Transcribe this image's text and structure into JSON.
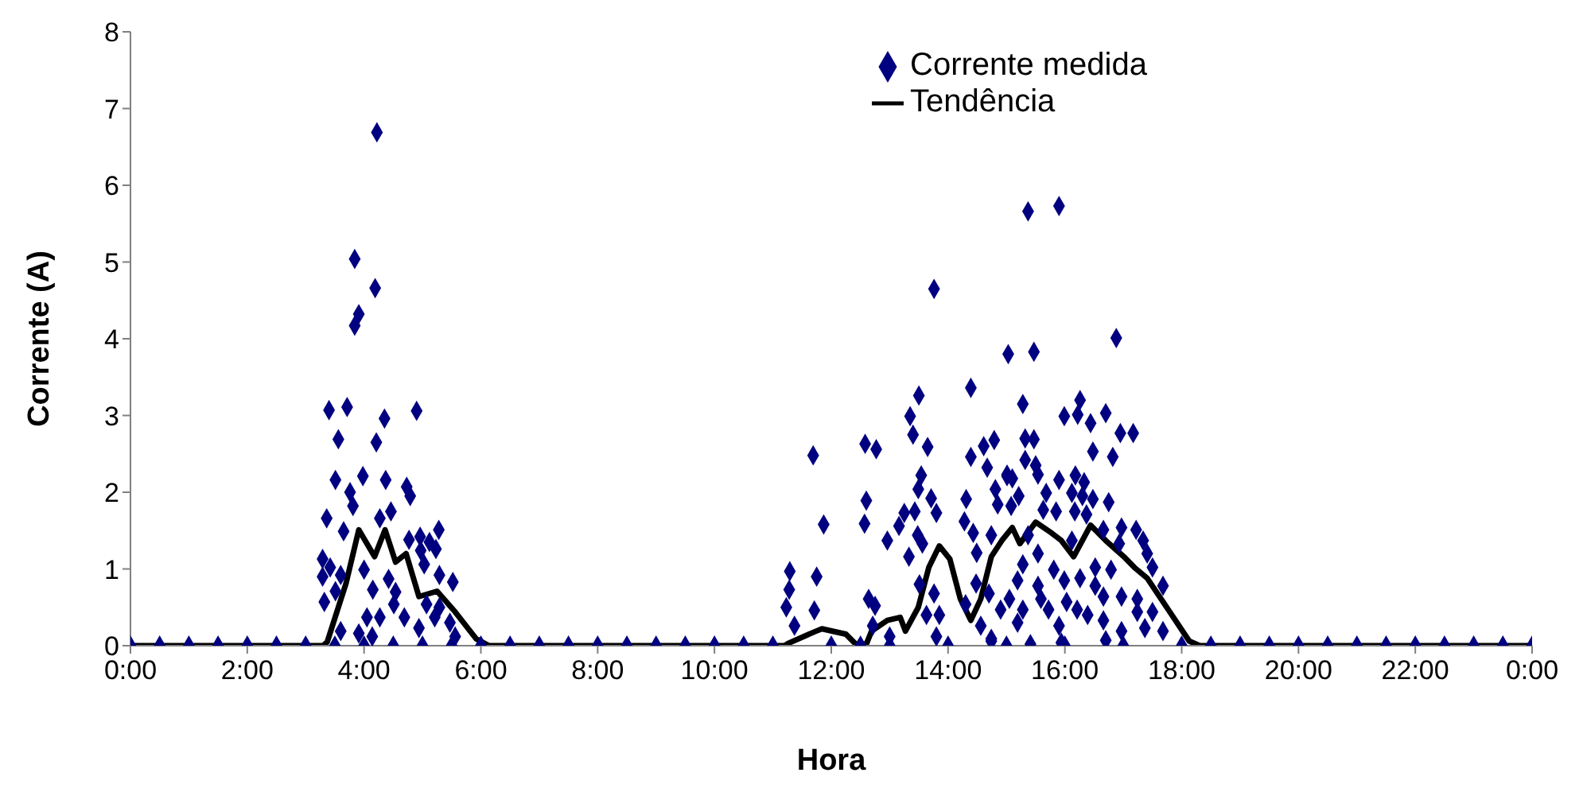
{
  "chart_data": {
    "type": "scatter",
    "xlabel": "Hora",
    "ylabel": "Corrente (A)",
    "xlim": [
      0,
      24
    ],
    "xticks": [
      {
        "value": 0,
        "label": "0:00"
      },
      {
        "value": 2,
        "label": "2:00"
      },
      {
        "value": 4,
        "label": "4:00"
      },
      {
        "value": 6,
        "label": "6:00"
      },
      {
        "value": 8,
        "label": "8:00"
      },
      {
        "value": 10,
        "label": "10:00"
      },
      {
        "value": 12,
        "label": "12:00"
      },
      {
        "value": 14,
        "label": "14:00"
      },
      {
        "value": 16,
        "label": "16:00"
      },
      {
        "value": 18,
        "label": "18:00"
      },
      {
        "value": 20,
        "label": "20:00"
      },
      {
        "value": 22,
        "label": "22:00"
      },
      {
        "value": 24,
        "label": "0:00"
      }
    ],
    "ylim": [
      0,
      8
    ],
    "yticks": [
      0,
      1,
      2,
      3,
      4,
      5,
      6,
      7,
      8
    ],
    "grid": false,
    "legend": "top right",
    "series": [
      {
        "name": "Corrente medida",
        "marker": "diamond",
        "color": "#000080",
        "x": [
          0,
          0.5,
          1,
          1.5,
          2,
          2.5,
          3,
          3.5,
          4,
          4.5,
          5,
          5.5,
          6,
          6.5,
          7,
          7.5,
          8,
          8.5,
          9,
          9.5,
          10,
          10.5,
          11,
          12,
          12.5,
          13,
          14,
          15,
          16,
          17,
          18,
          18.5,
          19,
          19.5,
          20,
          20.5,
          21,
          21.5,
          22,
          22.5,
          23,
          23.5,
          24,
          4.22,
          3.84,
          4.19,
          3.91,
          3.84,
          3.4,
          3.71,
          4.35,
          4.9,
          3.56,
          4.21,
          3.51,
          3.98,
          4.37,
          3.76,
          4.73,
          4.79,
          3.81,
          3.36,
          4.27,
          4.46,
          3.65,
          4.77,
          4.96,
          5.28,
          5.12,
          5.23,
          4.97,
          3.29,
          3.42,
          4,
          5.03,
          3.29,
          3.6,
          4.42,
          5.29,
          5.52,
          3.51,
          4.15,
          4.54,
          3.32,
          4.51,
          5.07,
          5.29,
          4.05,
          4.27,
          4.69,
          5.21,
          5.47,
          3.6,
          3.91,
          4.14,
          4.94,
          5.56,
          13.76,
          15.03,
          14.39,
          13.5,
          13.35,
          13.4,
          12.58,
          12.77,
          11.69,
          13.65,
          14.39,
          14.61,
          14.79,
          14.67,
          13.54,
          15.01,
          13.49,
          13.71,
          12.6,
          14.81,
          14.31,
          11.87,
          12.57,
          13.16,
          13.25,
          13.43,
          13.8,
          14.28,
          14.85,
          12.96,
          13.48,
          13.56,
          14.43,
          14.74,
          13.33,
          14.49,
          11.29,
          11.75,
          11.28,
          11.23,
          11.71,
          11.37,
          12.64,
          12.75,
          13.51,
          13.76,
          13.63,
          13.85,
          14.48,
          14.7,
          14.9,
          14.3,
          12.71,
          13,
          13.8,
          14.56,
          14.74,
          15.37,
          15.9,
          16.88,
          15.47,
          15.28,
          16.26,
          15.99,
          16.22,
          16.44,
          16.7,
          16.95,
          17.17,
          15.32,
          15.47,
          16.48,
          16.82,
          15.32,
          15.5,
          15.01,
          15.1,
          15.54,
          15.9,
          16.18,
          16.33,
          15.21,
          15.68,
          16.12,
          16.3,
          16.48,
          16.75,
          15.08,
          15.63,
          16.17,
          15.85,
          16.37,
          15.37,
          16.12,
          16.66,
          16.97,
          17.22,
          17.34,
          16.93,
          17.41,
          15.54,
          15.28,
          15.81,
          16.52,
          16.79,
          17.5,
          15.19,
          15.54,
          15.99,
          16.26,
          16.52,
          17.68,
          15.05,
          15.59,
          16.03,
          16.66,
          16.97,
          17.24,
          15.28,
          15.72,
          16.21,
          16.39,
          17.24,
          17.5,
          15.19,
          15.9,
          16.66,
          16.97,
          17.37,
          17.68,
          14.74,
          15.41,
          15.94,
          16.7
        ],
        "values": [
          0,
          0,
          0,
          0,
          0,
          0,
          0,
          0,
          0,
          0,
          0,
          0,
          0,
          0,
          0,
          0,
          0,
          0,
          0,
          0,
          0,
          0,
          0,
          0,
          0,
          0,
          0,
          0,
          0,
          0,
          0,
          0,
          0,
          0,
          0,
          0,
          0,
          0,
          0,
          0,
          0,
          0,
          0,
          6.69,
          5.04,
          4.66,
          4.32,
          4.17,
          3.07,
          3.11,
          2.96,
          3.06,
          2.69,
          2.65,
          2.16,
          2.21,
          2.16,
          2,
          2.07,
          1.95,
          1.82,
          1.66,
          1.66,
          1.75,
          1.49,
          1.38,
          1.42,
          1.51,
          1.35,
          1.26,
          1.24,
          1.13,
          1.02,
          0.99,
          1.06,
          0.9,
          0.92,
          0.87,
          0.92,
          0.83,
          0.71,
          0.73,
          0.7,
          0.57,
          0.54,
          0.54,
          0.5,
          0.37,
          0.37,
          0.37,
          0.37,
          0.3,
          0.19,
          0.16,
          0.12,
          0.23,
          0.12,
          4.65,
          3.8,
          3.36,
          3.26,
          2.99,
          2.75,
          2.63,
          2.56,
          2.48,
          2.59,
          2.46,
          2.6,
          2.68,
          2.32,
          2.22,
          2.23,
          2.04,
          1.92,
          1.89,
          2.04,
          1.91,
          1.58,
          1.59,
          1.56,
          1.73,
          1.75,
          1.73,
          1.62,
          1.84,
          1.37,
          1.44,
          1.33,
          1.47,
          1.44,
          1.16,
          1.21,
          0.97,
          0.9,
          0.73,
          0.5,
          0.46,
          0.26,
          0.61,
          0.52,
          0.8,
          0.68,
          0.4,
          0.4,
          0.81,
          0.68,
          0.47,
          0.54,
          0.26,
          0.12,
          0.12,
          0.26,
          0.09,
          5.66,
          5.73,
          4.01,
          3.83,
          3.15,
          3.2,
          2.99,
          3.01,
          2.9,
          3.03,
          2.77,
          2.77,
          2.7,
          2.69,
          2.53,
          2.46,
          2.42,
          2.35,
          2.21,
          2.18,
          2.23,
          2.16,
          2.22,
          2.13,
          1.95,
          1.99,
          1.99,
          1.95,
          1.91,
          1.87,
          1.82,
          1.77,
          1.75,
          1.75,
          1.71,
          1.44,
          1.37,
          1.51,
          1.54,
          1.51,
          1.37,
          1.33,
          1.2,
          1.2,
          1.06,
          0.99,
          1.02,
          0.99,
          1.02,
          0.85,
          0.78,
          0.85,
          0.88,
          0.78,
          0.78,
          0.61,
          0.61,
          0.57,
          0.64,
          0.64,
          0.61,
          0.47,
          0.47,
          0.47,
          0.4,
          0.44,
          0.44,
          0.3,
          0.26,
          0.33,
          0.19,
          0.23,
          0.19,
          0.06,
          0.02,
          0.04,
          0.07
        ]
      },
      {
        "name": "Tendência",
        "type": "line",
        "marker": "none",
        "color": "#000000",
        "x": [
          0,
          3.3,
          3.37,
          3.69,
          3.91,
          4.18,
          4.36,
          4.54,
          4.72,
          4.94,
          5.25,
          5.56,
          5.92,
          6.14,
          11.2,
          11.26,
          11.71,
          11.84,
          12.25,
          12.42,
          12.6,
          12.69,
          12.96,
          13.18,
          13.27,
          13.49,
          13.67,
          13.85,
          14.03,
          14.21,
          14.39,
          14.56,
          14.74,
          14.92,
          15.1,
          15.23,
          15.5,
          15.77,
          15.94,
          16.15,
          16.44,
          16.7,
          17.01,
          17.19,
          17.41,
          17.77,
          18.13,
          18.31,
          24
        ],
        "values": [
          0,
          0,
          0.05,
          0.81,
          1.51,
          1.16,
          1.51,
          1.09,
          1.2,
          0.64,
          0.71,
          0.44,
          0.09,
          0,
          0,
          0.03,
          0.18,
          0.22,
          0.15,
          0.02,
          0.02,
          0.19,
          0.33,
          0.37,
          0.19,
          0.5,
          1.02,
          1.3,
          1.13,
          0.61,
          0.33,
          0.61,
          1.16,
          1.37,
          1.54,
          1.33,
          1.61,
          1.47,
          1.37,
          1.16,
          1.57,
          1.37,
          1.16,
          1.02,
          0.88,
          0.47,
          0.06,
          0,
          0
        ]
      }
    ]
  }
}
